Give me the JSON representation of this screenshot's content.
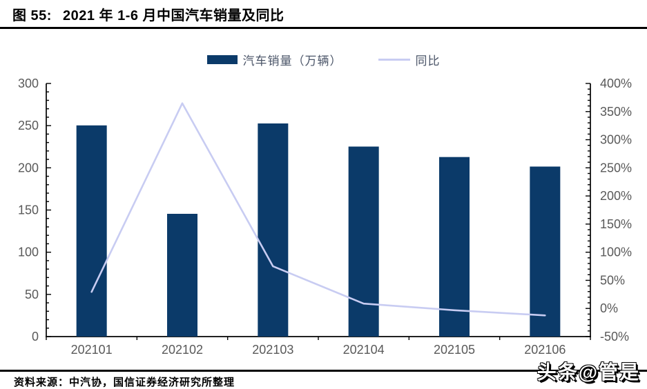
{
  "header": {
    "figure_label": "图 55:",
    "title": "2021 年 1-6 月中国汽车销量及同比"
  },
  "legend": [
    {
      "label": "汽车销量（万辆）",
      "type": "bar",
      "color": "#0b3a69"
    },
    {
      "label": "同比",
      "type": "line",
      "color": "#c8ccf2"
    }
  ],
  "chart_data": {
    "type": "bar+line combo",
    "categories": [
      "202101",
      "202102",
      "202103",
      "202104",
      "202105",
      "202106"
    ],
    "series": [
      {
        "name": "汽车销量（万辆）",
        "type": "bar",
        "axis": "left",
        "color": "#0b3a69",
        "values": [
          250.3,
          145.5,
          252.6,
          225.2,
          212.8,
          201.5
        ]
      },
      {
        "name": "同比",
        "type": "line",
        "axis": "right",
        "color": "#c8ccf2",
        "values": [
          29.5,
          364.8,
          74.9,
          8.6,
          -3.1,
          -12.4
        ],
        "unit": "%"
      }
    ],
    "left_axis": {
      "min": 0,
      "max": 300,
      "major_step": 50,
      "minor_step": 10,
      "tick_labels": [
        "0",
        "50",
        "100",
        "150",
        "200",
        "250",
        "300"
      ]
    },
    "right_axis": {
      "min": -50,
      "max": 400,
      "major_step": 50,
      "minor_step": 10,
      "tick_labels": [
        "-50%",
        "0%",
        "50%",
        "100%",
        "150%",
        "200%",
        "250%",
        "300%",
        "350%",
        "400%"
      ]
    },
    "grid": false,
    "legend_position": "top-center",
    "axis_label_color": "#595959",
    "axis_line_color": "#000000"
  },
  "footer": {
    "source": "资料来源：中汽协，国信证券经济研究所整理",
    "watermark": "头条@管是"
  }
}
